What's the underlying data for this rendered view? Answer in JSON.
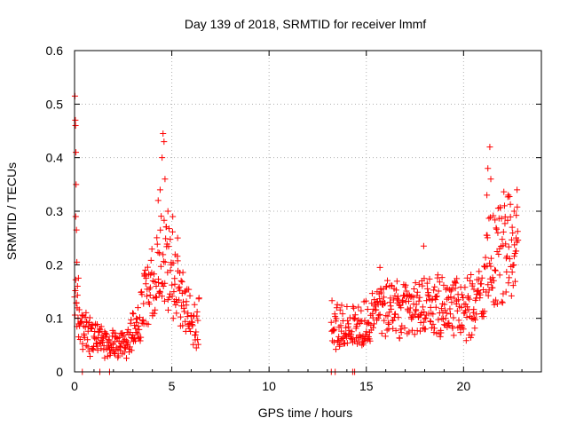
{
  "chart_data": {
    "type": "scatter",
    "title": "Day 139 of 2018, SRMTID for receiver lmmf",
    "xlabel": "GPS time / hours",
    "ylabel": "SRMTID / TECUs",
    "xlim": [
      0,
      24
    ],
    "ylim": [
      0,
      0.6
    ],
    "xticks": [
      0,
      5,
      10,
      15,
      20
    ],
    "yticks": [
      0,
      0.1,
      0.2,
      0.3,
      0.4,
      0.5,
      0.6
    ],
    "xtick_labels": [
      "0",
      "5",
      "10",
      "15",
      "20"
    ],
    "ytick_labels": [
      "0",
      "0.1",
      "0.2",
      "0.3",
      "0.4",
      "0.5",
      "0.6"
    ],
    "grid": true,
    "marker": "+",
    "series_color": "#ff0000",
    "series": [
      {
        "name": "SRMTID",
        "segments": [
          {
            "start": 0.0,
            "end": 6.4,
            "step": 0.02,
            "envelope": [
              [
                0.0,
                0.16
              ],
              [
                0.1,
                0.13
              ],
              [
                0.3,
                0.09
              ],
              [
                0.6,
                0.07
              ],
              [
                1.0,
                0.06
              ],
              [
                1.5,
                0.055
              ],
              [
                2.2,
                0.05
              ],
              [
                2.6,
                0.05
              ],
              [
                3.0,
                0.075
              ],
              [
                3.5,
                0.12
              ],
              [
                4.0,
                0.17
              ],
              [
                4.5,
                0.2
              ],
              [
                4.8,
                0.2
              ],
              [
                5.2,
                0.19
              ],
              [
                5.5,
                0.14
              ],
              [
                6.0,
                0.095
              ],
              [
                6.4,
                0.09
              ]
            ]
          },
          {
            "start": 13.2,
            "end": 22.8,
            "step": 0.02,
            "envelope": [
              [
                13.2,
                0.09
              ],
              [
                14.0,
                0.085
              ],
              [
                14.5,
                0.08
              ],
              [
                15.0,
                0.09
              ],
              [
                15.5,
                0.11
              ],
              [
                16.0,
                0.12
              ],
              [
                17.0,
                0.11
              ],
              [
                18.0,
                0.12
              ],
              [
                19.0,
                0.12
              ],
              [
                20.0,
                0.12
              ],
              [
                20.5,
                0.125
              ],
              [
                21.0,
                0.14
              ],
              [
                21.3,
                0.2
              ],
              [
                21.8,
                0.21
              ],
              [
                22.3,
                0.26
              ],
              [
                22.8,
                0.22
              ]
            ]
          }
        ],
        "outliers": [
          [
            0.02,
            0.515
          ],
          [
            0.04,
            0.47
          ],
          [
            0.05,
            0.46
          ],
          [
            0.07,
            0.41
          ],
          [
            0.08,
            0.35
          ],
          [
            0.06,
            0.29
          ],
          [
            0.1,
            0.265
          ],
          [
            0.12,
            0.205
          ],
          [
            0.15,
            0.16
          ],
          [
            0.2,
            0.175
          ],
          [
            4.55,
            0.445
          ],
          [
            4.6,
            0.43
          ],
          [
            4.5,
            0.4
          ],
          [
            4.65,
            0.36
          ],
          [
            4.4,
            0.34
          ],
          [
            4.3,
            0.32
          ],
          [
            4.8,
            0.3
          ],
          [
            5.05,
            0.29
          ],
          [
            5.3,
            0.25
          ],
          [
            15.7,
            0.195
          ],
          [
            17.95,
            0.235
          ],
          [
            21.35,
            0.42
          ],
          [
            21.25,
            0.38
          ],
          [
            21.4,
            0.36
          ],
          [
            21.2,
            0.33
          ],
          [
            22.3,
            0.33
          ],
          [
            22.75,
            0.34
          ],
          [
            22.6,
            0.3
          ],
          [
            22.5,
            0.27
          ],
          [
            22.7,
            0.25
          ]
        ],
        "zeros": [
          0.4,
          1.3,
          1.8,
          13.2,
          13.4,
          14.3,
          14.4
        ]
      }
    ]
  }
}
